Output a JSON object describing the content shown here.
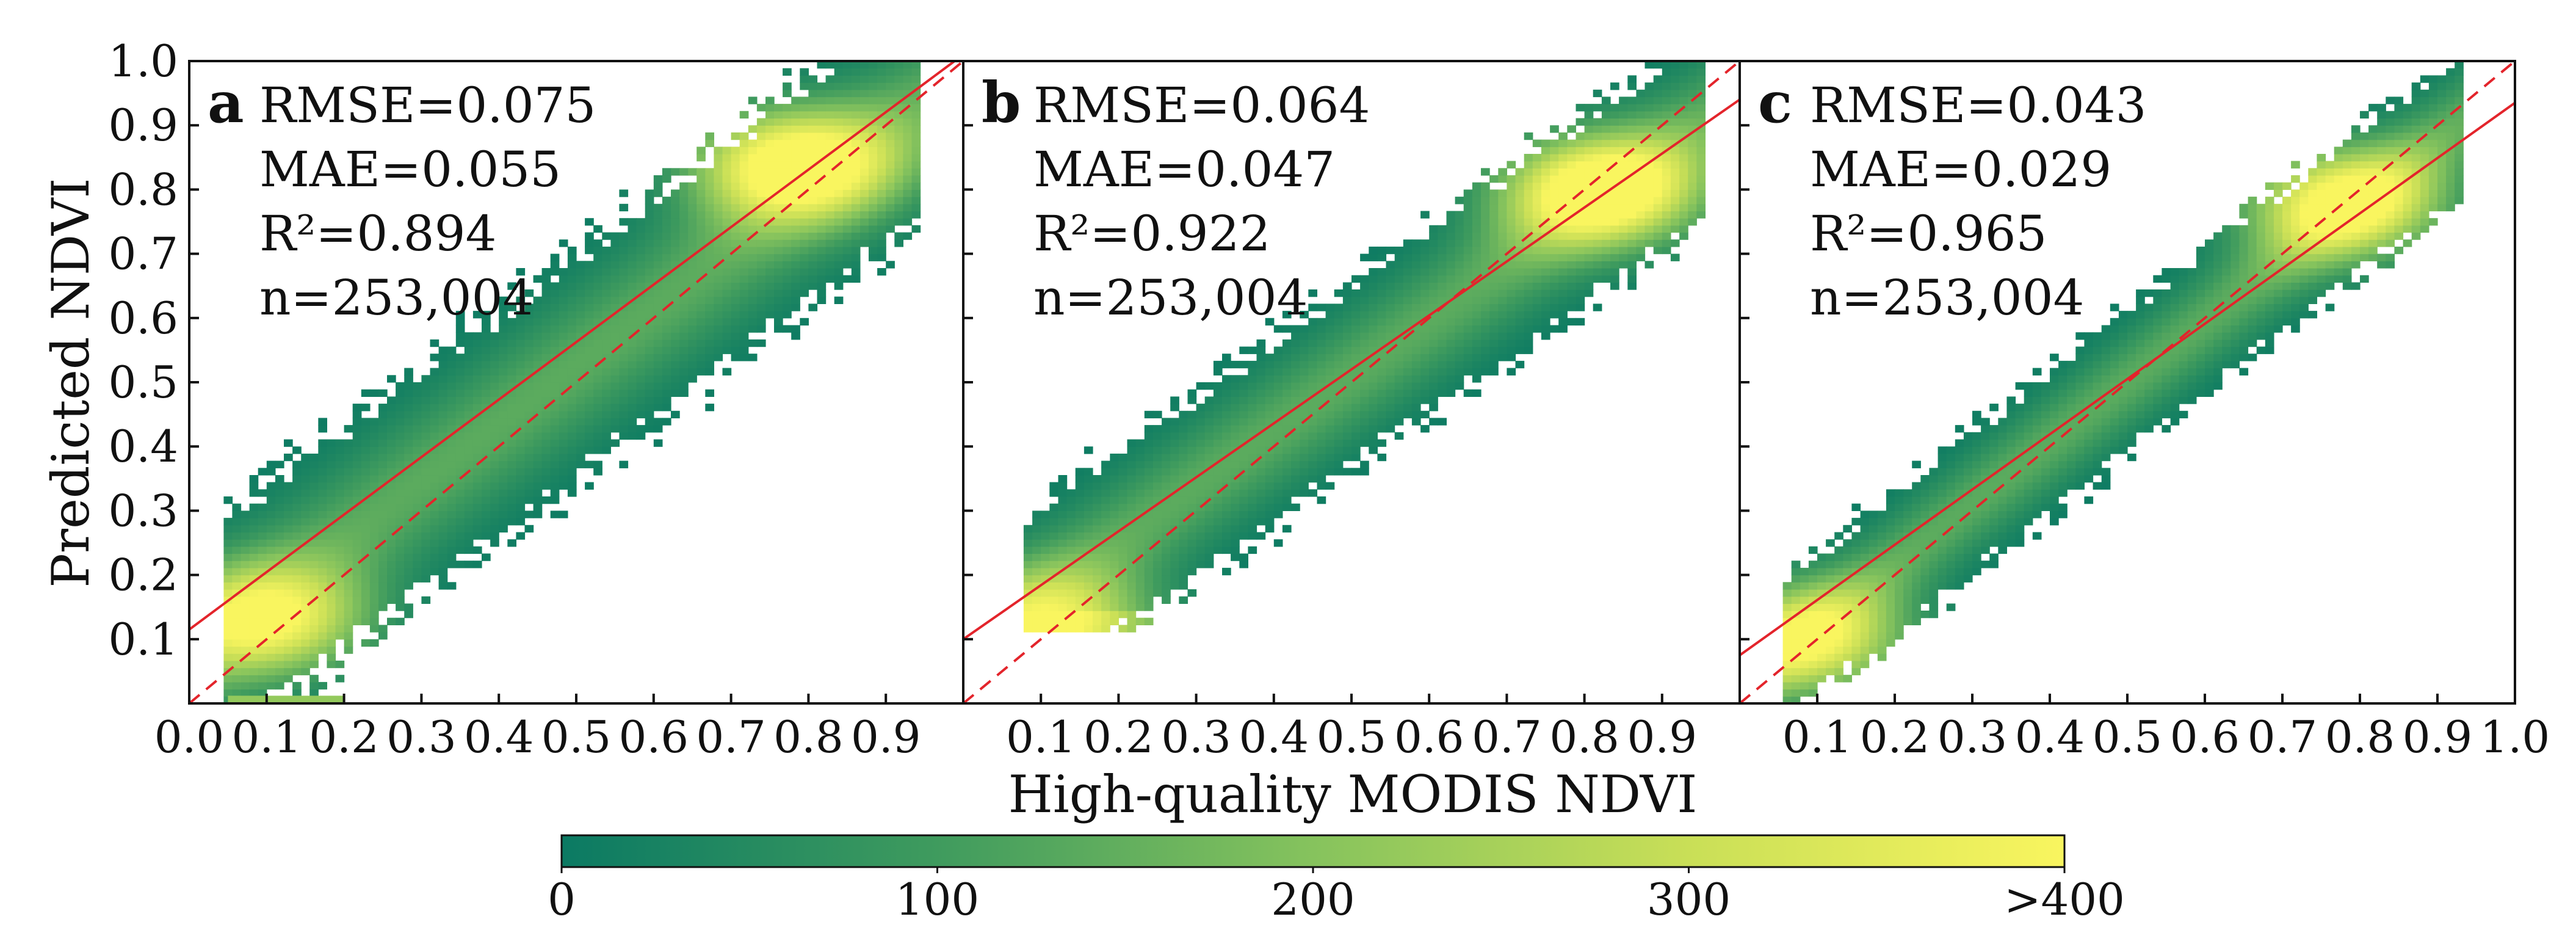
{
  "chart_data": {
    "type": "heatmap",
    "description_kind": "density scatter (2D histogram) with fitted regression line and 1:1 dashed line",
    "ylabel": "Predicted NDVI",
    "xlabel": "High-quality MODIS NDVI",
    "xlim": [
      0.0,
      1.0
    ],
    "ylim": [
      0.0,
      1.0
    ],
    "y_ticks": [
      "0.1",
      "0.2",
      "0.3",
      "0.4",
      "0.5",
      "0.6",
      "0.7",
      "0.8",
      "0.9",
      "1.0"
    ],
    "panels": [
      {
        "letter": "a",
        "x_ticks": [
          "0.0",
          "0.1",
          "0.2",
          "0.3",
          "0.4",
          "0.5",
          "0.6",
          "0.7",
          "0.8",
          "0.9"
        ],
        "stats": [
          "RMSE=0.075",
          "MAE=0.055",
          "R²=0.894",
          "n=253,004"
        ],
        "fit_line": {
          "intercept": 0.115,
          "slope": 0.895
        },
        "density": {
          "x_range": [
            0.05,
            0.94
          ],
          "center_slope": 0.9,
          "center_intercept": 0.075,
          "spread": 0.085,
          "hotspots": [
            {
              "x": 0.1,
              "y": 0.13,
              "weight": 330
            },
            {
              "x": 0.78,
              "y": 0.84,
              "weight": 420
            }
          ],
          "extra_strip": {
            "x_range": [
              0.05,
              0.2
            ],
            "y": 0.005
          }
        }
      },
      {
        "letter": "b",
        "x_ticks": [
          "0.1",
          "0.2",
          "0.3",
          "0.4",
          "0.5",
          "0.6",
          "0.7",
          "0.8",
          "0.9"
        ],
        "stats": [
          "RMSE=0.064",
          "MAE=0.047",
          "R²=0.922",
          "n=253,004"
        ],
        "fit_line": {
          "intercept": 0.1,
          "slope": 0.84
        },
        "density": {
          "x_range": [
            0.08,
            0.95
          ],
          "center_slope": 0.86,
          "center_intercept": 0.08,
          "spread": 0.07,
          "floor_y": 0.11,
          "hotspots": [
            {
              "x": 0.12,
              "y": 0.12,
              "weight": 300
            },
            {
              "x": 0.82,
              "y": 0.8,
              "weight": 420
            }
          ]
        }
      },
      {
        "letter": "c",
        "x_ticks": [
          "0.1",
          "0.2",
          "0.3",
          "0.4",
          "0.5",
          "0.6",
          "0.7",
          "0.8",
          "0.9",
          "1.0"
        ],
        "stats": [
          "RMSE=0.043",
          "MAE=0.029",
          "R²=0.965",
          "n=253,004"
        ],
        "fit_line": {
          "intercept": 0.075,
          "slope": 0.86
        },
        "density": {
          "x_range": [
            0.06,
            0.93
          ],
          "center_slope": 0.94,
          "center_intercept": 0.03,
          "spread": 0.055,
          "hotspots": [
            {
              "x": 0.09,
              "y": 0.1,
              "weight": 330
            },
            {
              "x": 0.78,
              "y": 0.78,
              "weight": 380
            }
          ]
        }
      }
    ],
    "colorbar": {
      "ticks": [
        "0",
        "100",
        "200",
        "300",
        ">400"
      ],
      "min": 0,
      "max": 400,
      "colors": [
        "#0b7a63",
        "#3f9b5e",
        "#86c35d",
        "#c9df57",
        "#f9f55f"
      ]
    },
    "line_color": "#e3242b"
  }
}
